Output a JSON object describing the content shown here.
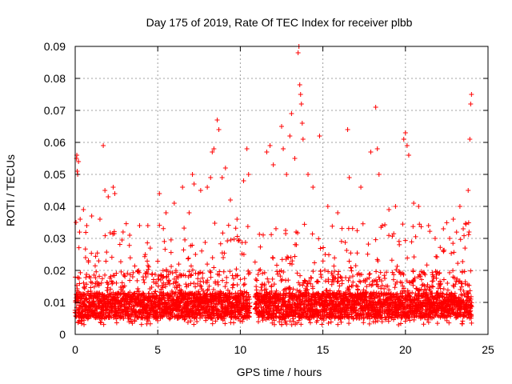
{
  "chart_data": {
    "type": "scatter",
    "title": "Day 175 of 2019, Rate Of TEC Index for receiver plbb",
    "xlabel": "GPS time / hours",
    "ylabel": "ROTI / TECUs",
    "xlim": [
      0,
      25
    ],
    "ylim": [
      0,
      0.09
    ],
    "xticks": [
      0,
      5,
      10,
      15,
      20,
      25
    ],
    "xtick_labels": [
      "0",
      "5",
      "10",
      "15",
      "20",
      "25"
    ],
    "yticks": [
      0,
      0.01,
      0.02,
      0.03,
      0.04,
      0.05,
      0.06,
      0.07,
      0.08,
      0.09
    ],
    "ytick_labels": [
      "0",
      "0.01",
      "0.02",
      "0.03",
      "0.04",
      "0.05",
      "0.06",
      "0.07",
      "0.08",
      "0.09"
    ],
    "grid": true,
    "marker": "+",
    "color": "#ff0000",
    "gap_hours": [
      10.6,
      10.9
    ],
    "series": [
      {
        "name": "ROTI",
        "points": [
          [
            0.05,
            0.035
          ],
          [
            0.08,
            0.055
          ],
          [
            0.1,
            0.056
          ],
          [
            0.12,
            0.051
          ],
          [
            0.15,
            0.05
          ],
          [
            0.2,
            0.054
          ],
          [
            0.3,
            0.036
          ],
          [
            0.5,
            0.039
          ],
          [
            0.7,
            0.034
          ],
          [
            1.0,
            0.037
          ],
          [
            1.5,
            0.036
          ],
          [
            1.7,
            0.059
          ],
          [
            1.8,
            0.045
          ],
          [
            2.0,
            0.043
          ],
          [
            2.3,
            0.046
          ],
          [
            2.4,
            0.044
          ],
          [
            2.9,
            0.032
          ],
          [
            3.3,
            0.031
          ],
          [
            3.9,
            0.034
          ],
          [
            4.4,
            0.034
          ],
          [
            5.1,
            0.044
          ],
          [
            5.5,
            0.038
          ],
          [
            6.0,
            0.041
          ],
          [
            6.5,
            0.046
          ],
          [
            6.9,
            0.038
          ],
          [
            7.1,
            0.05
          ],
          [
            7.2,
            0.047
          ],
          [
            7.6,
            0.045
          ],
          [
            8.0,
            0.046
          ],
          [
            8.2,
            0.049
          ],
          [
            8.3,
            0.057
          ],
          [
            8.4,
            0.058
          ],
          [
            8.6,
            0.067
          ],
          [
            8.7,
            0.064
          ],
          [
            8.9,
            0.049
          ],
          [
            9.1,
            0.052
          ],
          [
            9.4,
            0.042
          ],
          [
            9.8,
            0.036
          ],
          [
            10.2,
            0.048
          ],
          [
            10.4,
            0.058
          ],
          [
            10.5,
            0.05
          ],
          [
            11.6,
            0.057
          ],
          [
            11.8,
            0.059
          ],
          [
            12.0,
            0.053
          ],
          [
            12.5,
            0.065
          ],
          [
            12.6,
            0.058
          ],
          [
            12.8,
            0.05
          ],
          [
            13.0,
            0.062
          ],
          [
            13.1,
            0.069
          ],
          [
            13.3,
            0.055
          ],
          [
            13.5,
            0.088
          ],
          [
            13.55,
            0.09
          ],
          [
            13.6,
            0.078
          ],
          [
            13.65,
            0.075
          ],
          [
            13.7,
            0.072
          ],
          [
            13.75,
            0.066
          ],
          [
            13.8,
            0.061
          ],
          [
            14.1,
            0.05
          ],
          [
            14.4,
            0.046
          ],
          [
            14.8,
            0.062
          ],
          [
            15.3,
            0.04
          ],
          [
            15.9,
            0.038
          ],
          [
            16.5,
            0.064
          ],
          [
            16.6,
            0.049
          ],
          [
            17.3,
            0.046
          ],
          [
            17.9,
            0.057
          ],
          [
            18.2,
            0.071
          ],
          [
            18.3,
            0.058
          ],
          [
            18.4,
            0.05
          ],
          [
            18.6,
            0.034
          ],
          [
            19.0,
            0.039
          ],
          [
            19.4,
            0.04
          ],
          [
            19.9,
            0.061
          ],
          [
            20.0,
            0.063
          ],
          [
            20.1,
            0.059
          ],
          [
            20.2,
            0.056
          ],
          [
            20.5,
            0.041
          ],
          [
            20.8,
            0.04
          ],
          [
            21.4,
            0.034
          ],
          [
            21.8,
            0.03
          ],
          [
            22.3,
            0.033
          ],
          [
            22.9,
            0.036
          ],
          [
            23.3,
            0.04
          ],
          [
            23.5,
            0.033
          ],
          [
            23.8,
            0.045
          ],
          [
            23.9,
            0.061
          ],
          [
            23.95,
            0.072
          ],
          [
            24.0,
            0.075
          ]
        ],
        "dense_band": {
          "x_range": [
            0,
            24
          ],
          "gap_x": [
            10.6,
            10.9
          ],
          "y_floor": 0.003,
          "y_typical_max": 0.02,
          "y_burst_max": 0.035
        }
      }
    ]
  }
}
